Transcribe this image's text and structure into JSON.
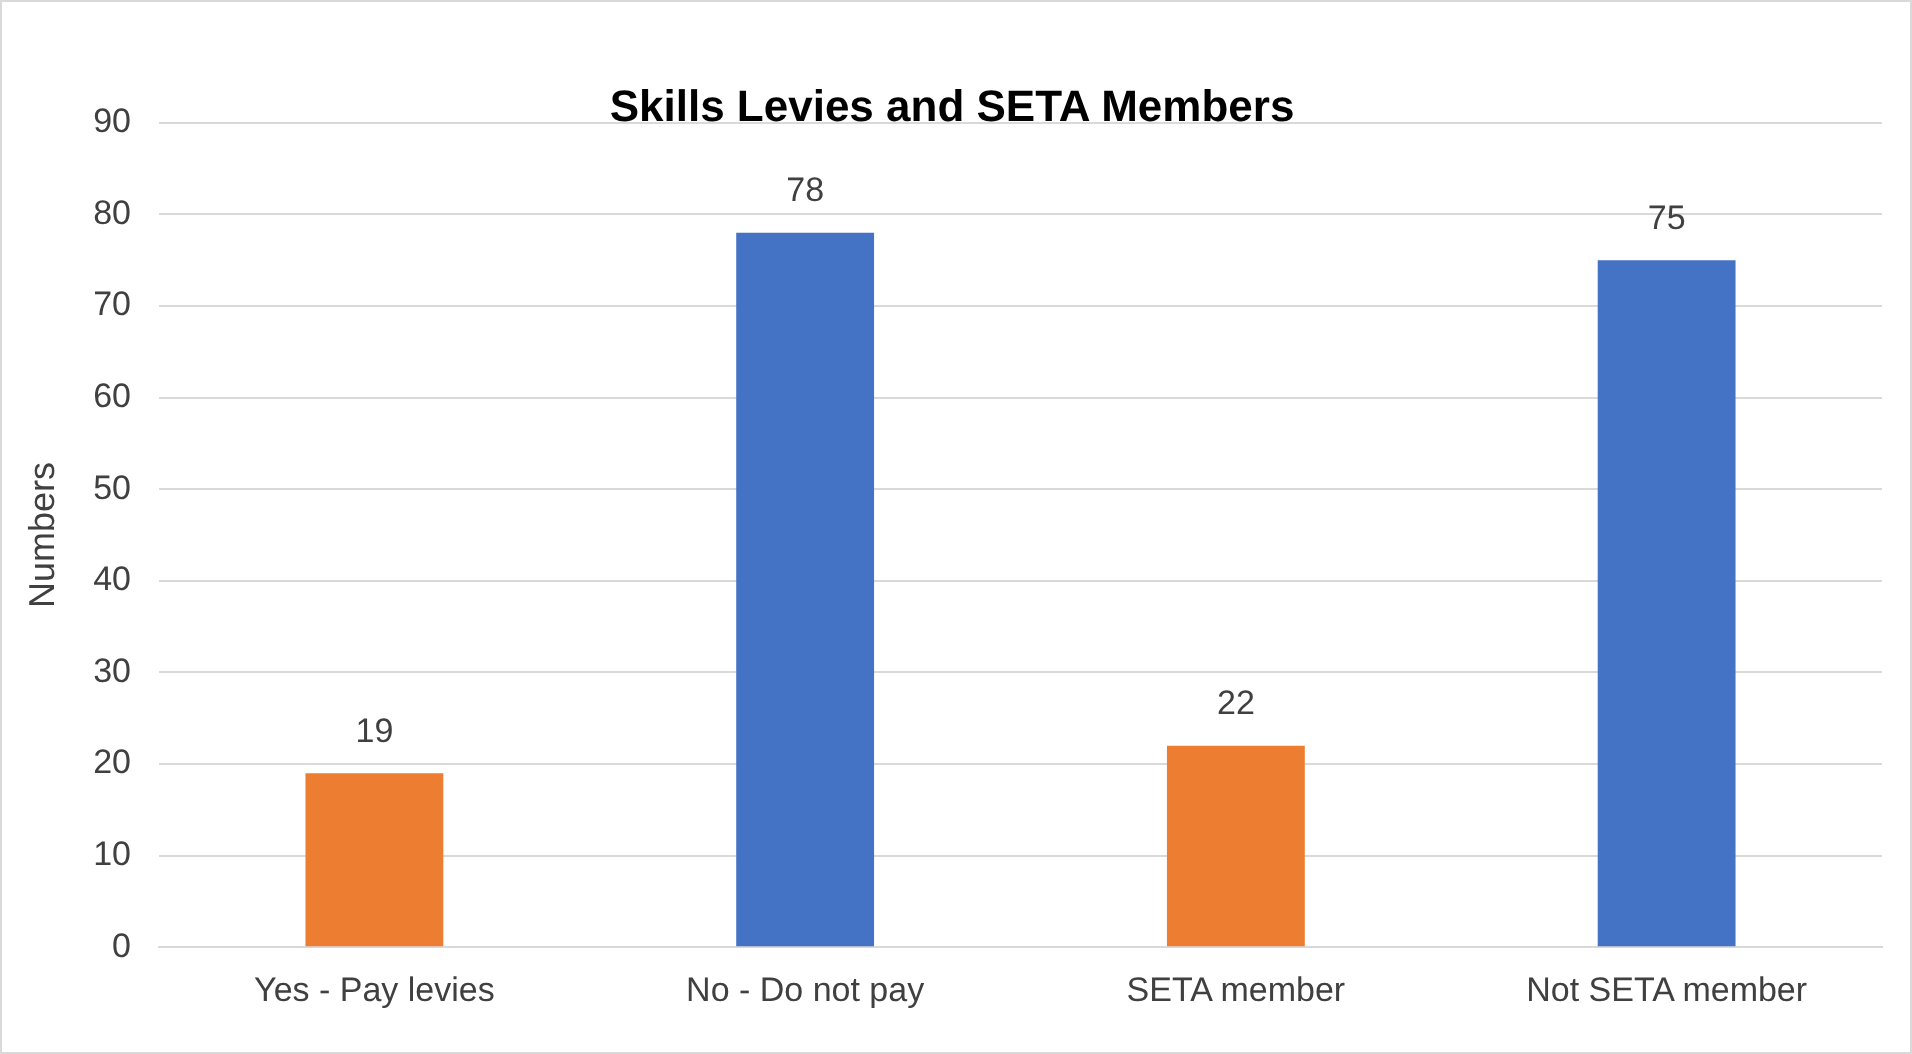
{
  "chart_data": {
    "type": "bar",
    "title": "Skills Levies and SETA Members",
    "ylabel": "Numbers",
    "categories": [
      "Yes - Pay levies",
      "No - Do not pay",
      "SETA member",
      "Not SETA member"
    ],
    "values": [
      19,
      78,
      22,
      75
    ],
    "colors": [
      "#ed7d31",
      "#4472c4",
      "#ed7d31",
      "#4472c4"
    ],
    "ylim": [
      0,
      90
    ],
    "yticks": [
      0,
      10,
      20,
      30,
      40,
      50,
      60,
      70,
      80,
      90
    ],
    "grid": "y",
    "legend": false,
    "data_labels": true
  }
}
